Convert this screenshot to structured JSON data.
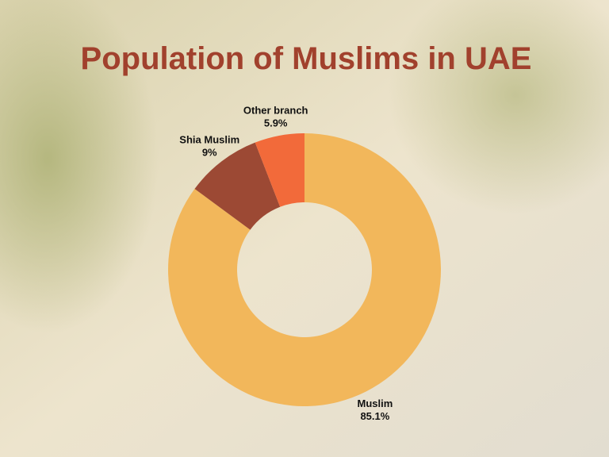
{
  "chart_data": {
    "type": "donut",
    "title": "Population of Muslims in UAE",
    "categories": [
      "Muslim",
      "Shia Muslim",
      "Other branch"
    ],
    "values": [
      85.1,
      9,
      5.9
    ],
    "value_labels": [
      "85.1%",
      "9%",
      "5.9%"
    ],
    "colors": [
      "#f2b75b",
      "#9c4934",
      "#f26a3a"
    ]
  }
}
